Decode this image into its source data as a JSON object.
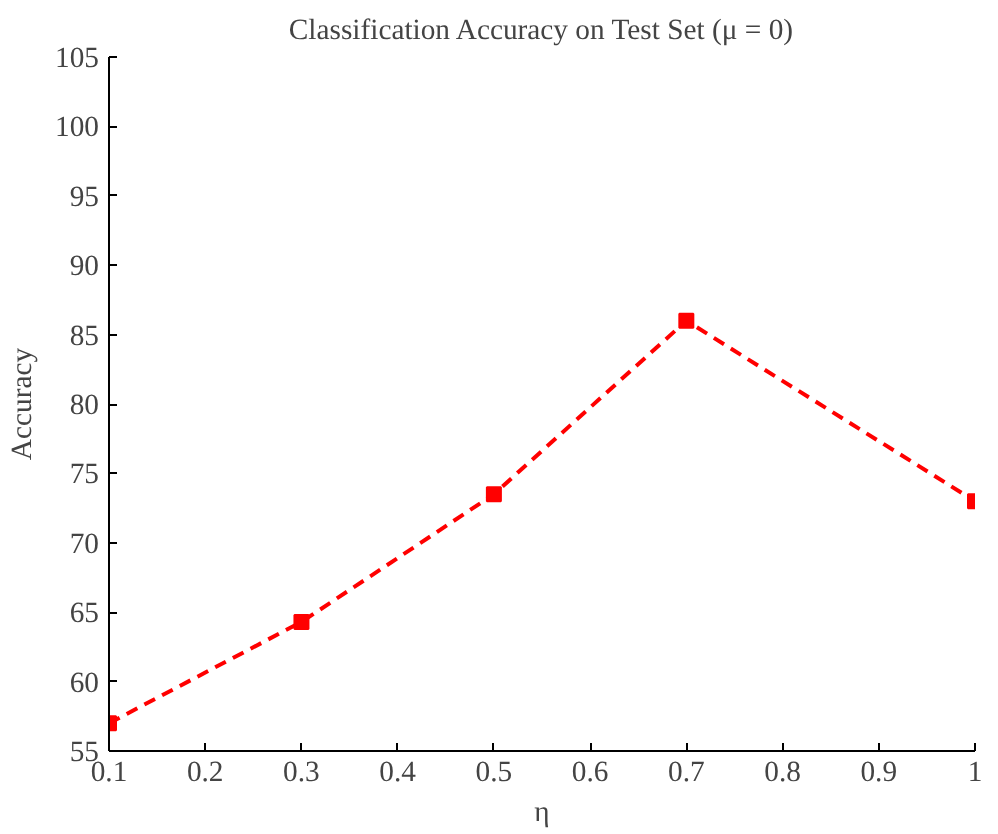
{
  "chart_data": {
    "type": "line",
    "title": "Classification Accuracy on Test Set (μ = 0)",
    "xlabel": "η",
    "ylabel": "Accuracy",
    "x": [
      0.1,
      0.3,
      0.5,
      0.7,
      1.0
    ],
    "series": [
      {
        "color": "#ff0000",
        "values": [
          57,
          64.3,
          73.5,
          86,
          73
        ]
      }
    ],
    "xlim": [
      0.1,
      1.0
    ],
    "xticks": [
      0.1,
      0.2,
      0.3,
      0.4,
      0.5,
      0.6,
      0.7,
      0.8,
      0.9,
      {
        "value": 1.0,
        "label": "1"
      }
    ],
    "ylim": [
      55,
      105
    ],
    "yticks": [
      55,
      60,
      65,
      70,
      75,
      80,
      85,
      90,
      95,
      100,
      105
    ],
    "marker": "square",
    "line_style": "dashed",
    "grid": false
  }
}
